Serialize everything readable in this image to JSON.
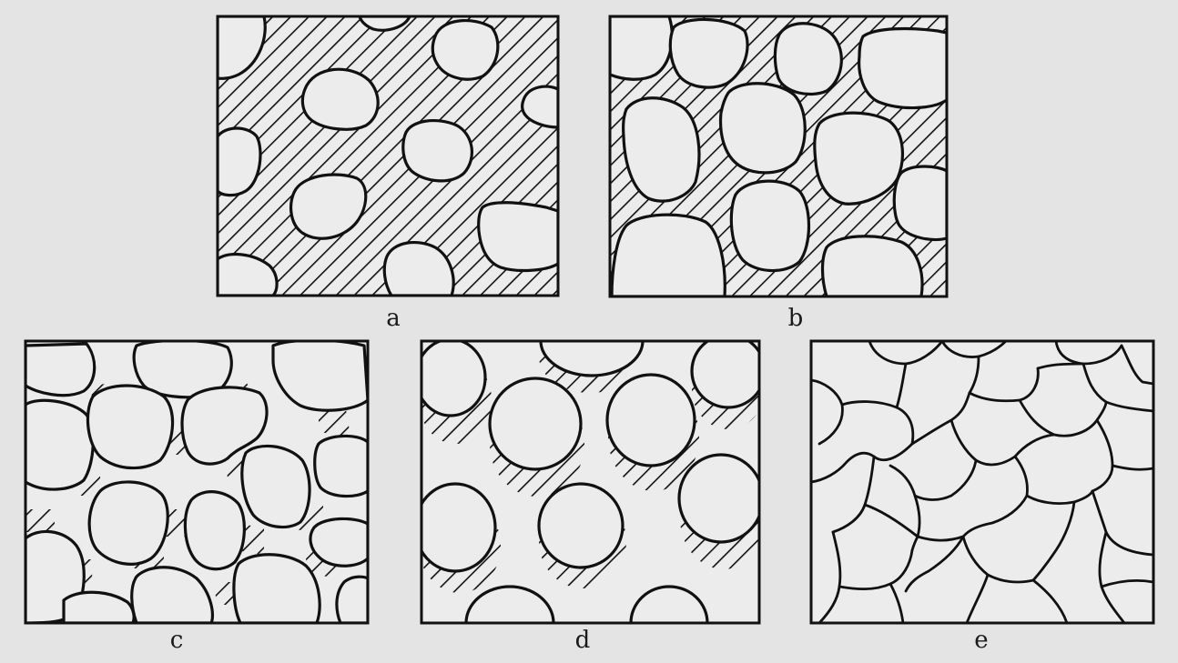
{
  "labels": {
    "a": "a",
    "b": "b",
    "c": "c",
    "d": "d",
    "e": "e"
  },
  "colors": {
    "background": "#e4e4e4",
    "ink": "#111111",
    "grain_fill": "#ececec"
  }
}
